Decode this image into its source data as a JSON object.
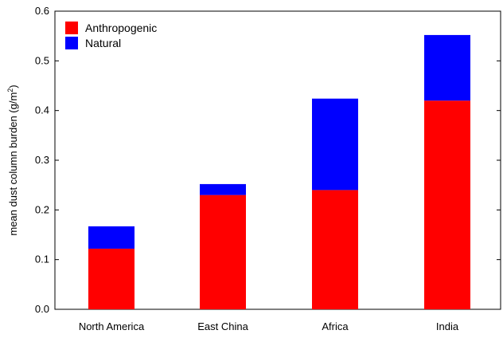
{
  "chart_data": {
    "type": "bar",
    "stacked": true,
    "categories": [
      "North America",
      "East China",
      "Africa",
      "India"
    ],
    "series": [
      {
        "name": "Anthropogenic",
        "color": "#ff0000",
        "values": [
          0.122,
          0.23,
          0.24,
          0.42
        ]
      },
      {
        "name": "Natural",
        "color": "#0000ff",
        "values": [
          0.045,
          0.022,
          0.184,
          0.132
        ]
      }
    ],
    "ylabel": "mean dust column burden (g/m",
    "ylabel_sup": "2",
    "ylabel_close": ")",
    "ylim": [
      0.0,
      0.6
    ],
    "yticks": [
      "0.0",
      "0.1",
      "0.2",
      "0.3",
      "0.4",
      "0.5",
      "0.6"
    ],
    "legend_position": "top-left",
    "grid": false
  }
}
